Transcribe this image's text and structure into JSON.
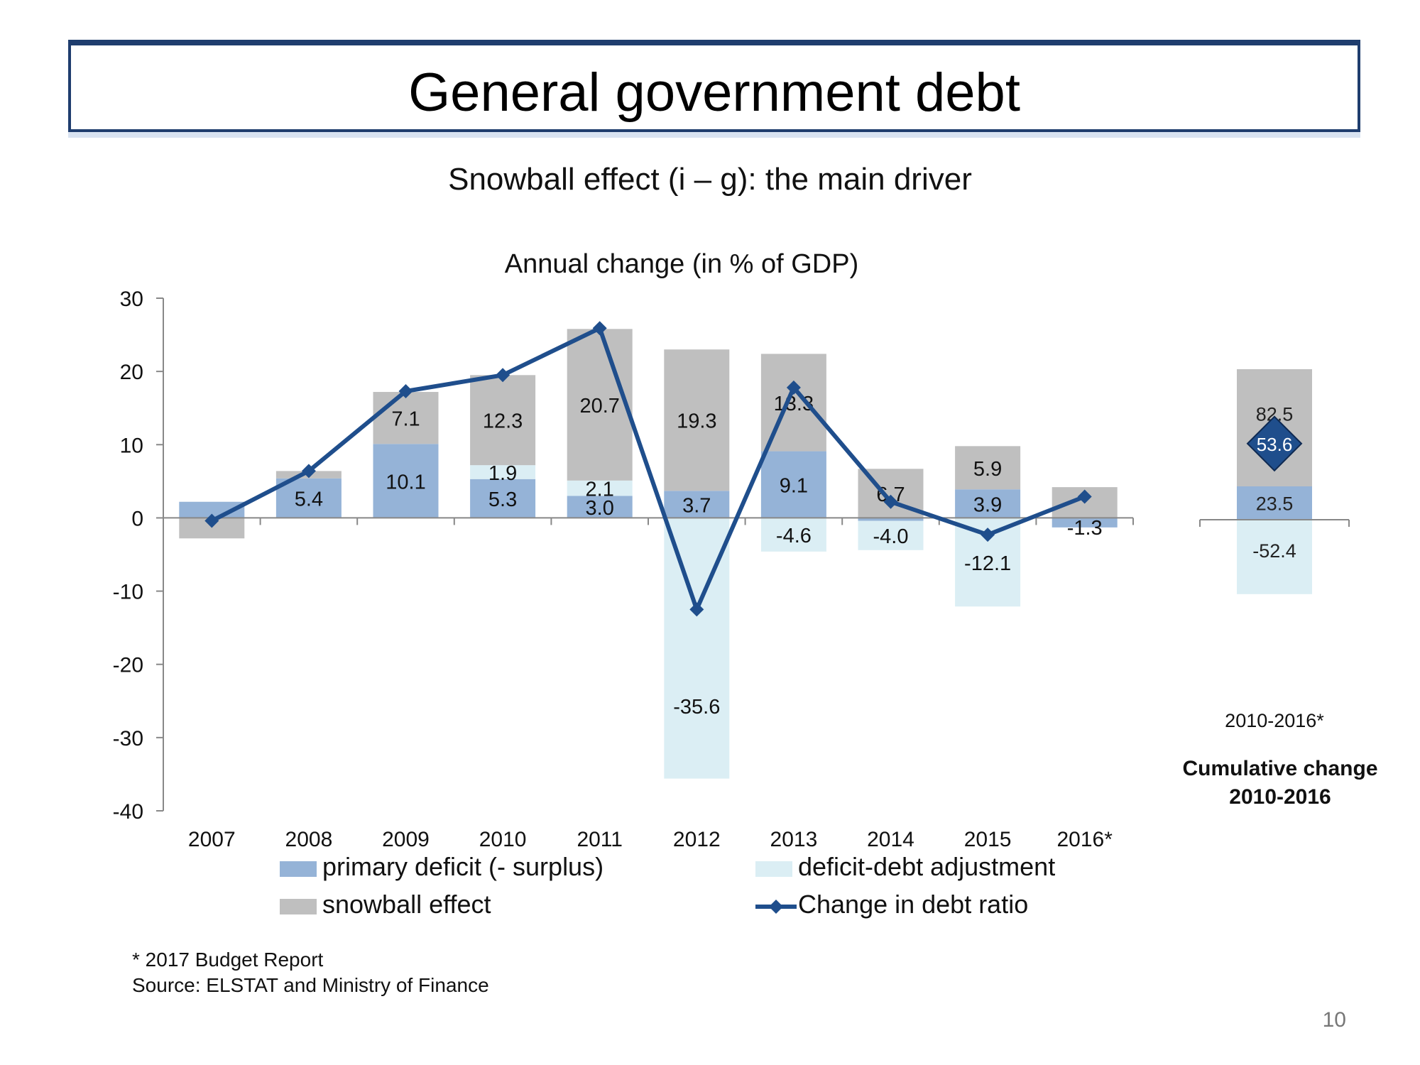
{
  "slide": {
    "title": "General government debt",
    "subtitle": "Snowball effect (i – g): the main driver",
    "footnote_1": "* 2017 Budget Report",
    "footnote_2": "Source: ELSTAT and Ministry of Finance",
    "page_number": "10"
  },
  "colors": {
    "primary_deficit": "#95b3d7",
    "deficit_debt_adjustment": "#dbeef4",
    "snowball_effect": "#bfbfbf",
    "change_in_debt_ratio": "#1f4e8c",
    "title_border": "#1f3d6e"
  },
  "chart_data": [
    {
      "type": "bar",
      "stacked": true,
      "title": "Annual change (in % of GDP)",
      "categories": [
        "2007",
        "2008",
        "2009",
        "2010",
        "2011",
        "2012",
        "2013",
        "2014",
        "2015",
        "2016*"
      ],
      "ylim": [
        -40,
        30
      ],
      "yticks": [
        30,
        20,
        10,
        0,
        -10,
        -20,
        -30,
        -40
      ],
      "grid": false,
      "legend_position": "bottom",
      "series": [
        {
          "name": "primary deficit (- surplus)",
          "values": [
            2.2,
            5.4,
            10.1,
            5.3,
            3.0,
            3.7,
            9.1,
            -0.4,
            3.9,
            -1.3
          ],
          "labels": [
            "",
            "5.4",
            "10.1",
            "5.3",
            "3.0",
            "3.7",
            "9.1",
            "",
            "3.9",
            "-1.3"
          ]
        },
        {
          "name": "deficit-debt adjustment",
          "values": [
            0.0,
            0.0,
            0.0,
            1.9,
            2.1,
            -35.6,
            -4.6,
            -4.0,
            -12.1,
            0.0
          ],
          "labels": [
            "",
            "",
            "",
            "1.9",
            "2.1",
            "-35.6",
            "-4.6",
            "-4.0",
            "-12.1",
            ""
          ]
        },
        {
          "name": "snowball effect",
          "values": [
            -2.8,
            1.0,
            7.1,
            12.3,
            20.7,
            19.3,
            13.3,
            6.7,
            5.9,
            4.2
          ],
          "labels": [
            "",
            "",
            "7.1",
            "12.3",
            "20.7",
            "19.3",
            "13.3",
            "6.7",
            "5.9",
            ""
          ]
        },
        {
          "name": "Change in debt ratio",
          "type": "line",
          "values": [
            -0.4,
            6.4,
            17.3,
            19.5,
            25.9,
            -12.5,
            17.8,
            2.2,
            -2.3,
            2.9
          ]
        }
      ]
    },
    {
      "type": "bar",
      "stacked": true,
      "title": "Cumulative change 2010-2016",
      "categories": [
        "2010-2016*"
      ],
      "series": [
        {
          "name": "primary deficit (- surplus)",
          "values": [
            23.5
          ],
          "labels": [
            "23.5"
          ]
        },
        {
          "name": "deficit-debt adjustment",
          "values": [
            -52.4
          ],
          "labels": [
            "-52.4"
          ]
        },
        {
          "name": "snowball effect",
          "values": [
            82.5
          ],
          "labels": [
            "82.5"
          ]
        },
        {
          "name": "Change in debt ratio",
          "type": "point",
          "values": [
            53.6
          ],
          "labels": [
            "53.6"
          ]
        }
      ]
    }
  ]
}
